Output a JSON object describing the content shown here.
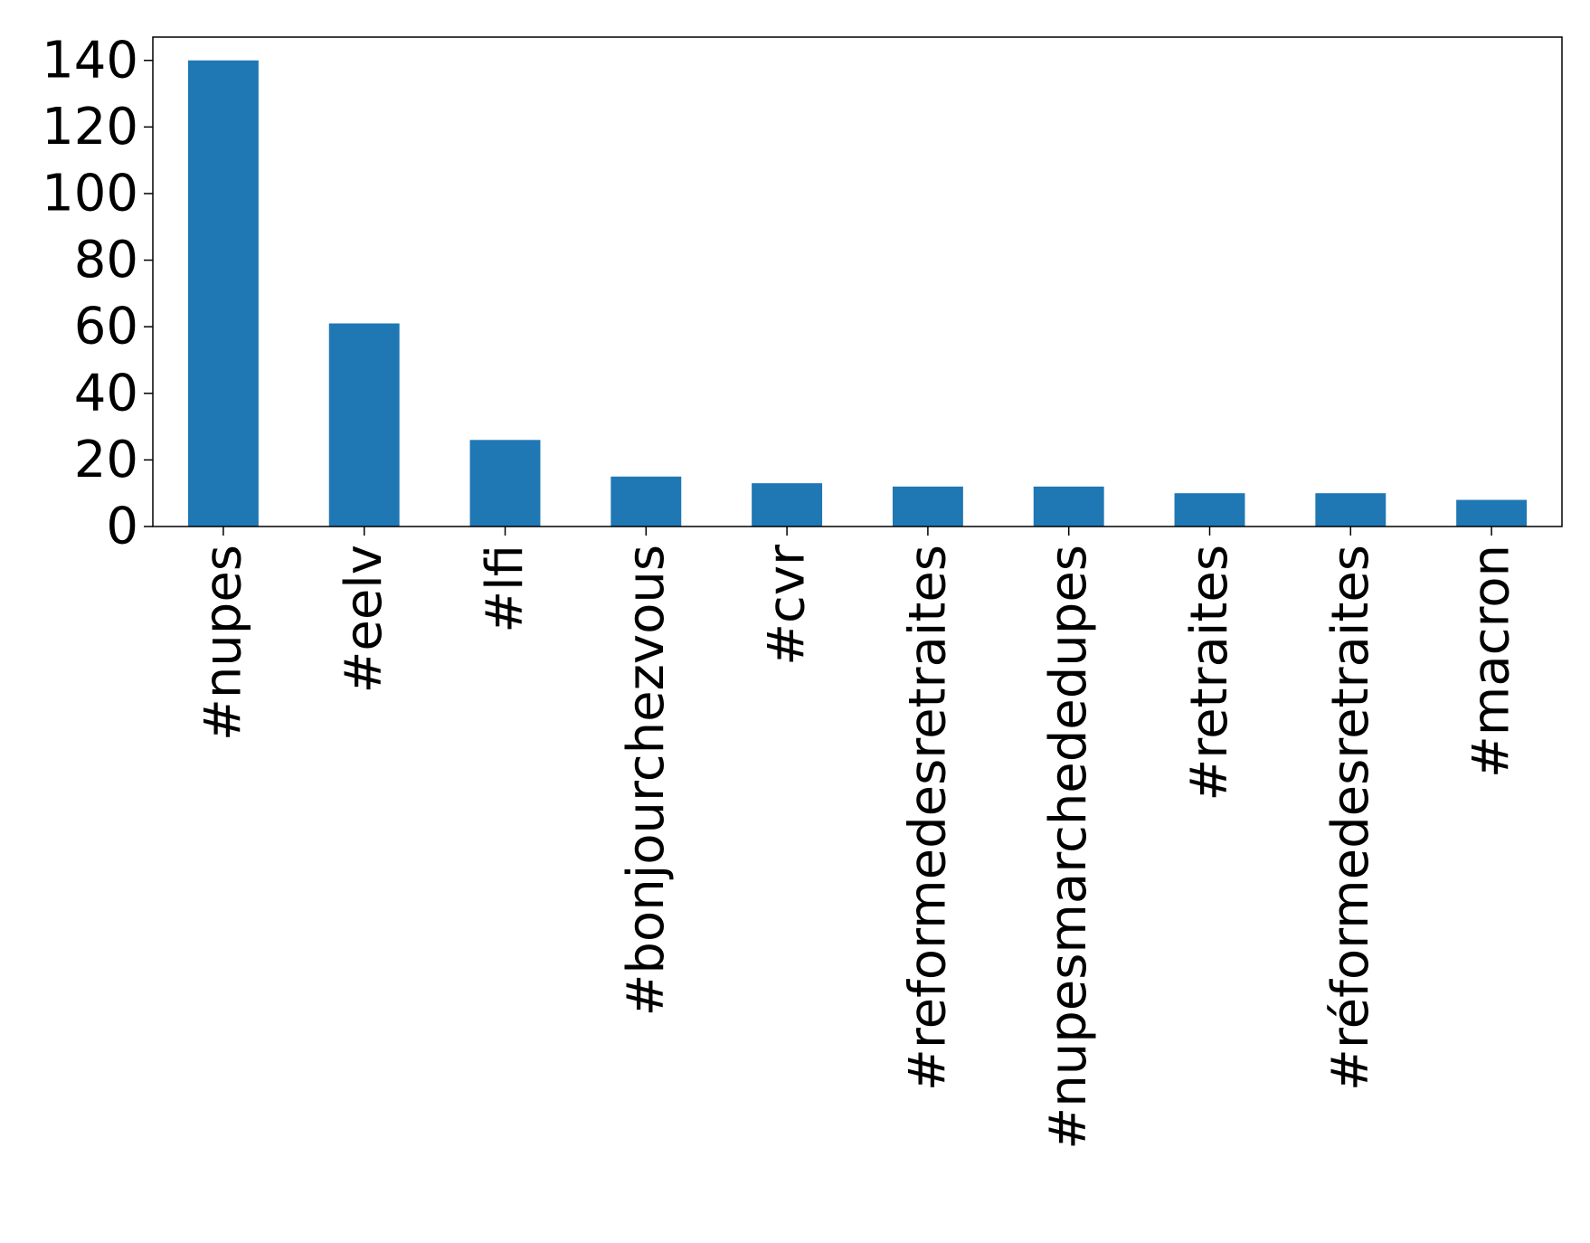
{
  "chart_data": {
    "type": "bar",
    "title": "",
    "xlabel": "",
    "ylabel": "",
    "categories": [
      "#nupes",
      "#eelv",
      "#lfi",
      "#bonjourchezvous",
      "#cvr",
      "#reformedesretraites",
      "#nupesmarchededupes",
      "#retraites",
      "#réformedesretraites",
      "#macron"
    ],
    "values": [
      140,
      61,
      26,
      15,
      13,
      12,
      12,
      10,
      10,
      8
    ],
    "ylim": [
      0,
      147
    ],
    "yticks": [
      0,
      20,
      40,
      60,
      80,
      100,
      120,
      140
    ],
    "grid": false,
    "legend": "none",
    "bar_color": "#1f77b4",
    "tick_label_rotation": "vertical"
  }
}
